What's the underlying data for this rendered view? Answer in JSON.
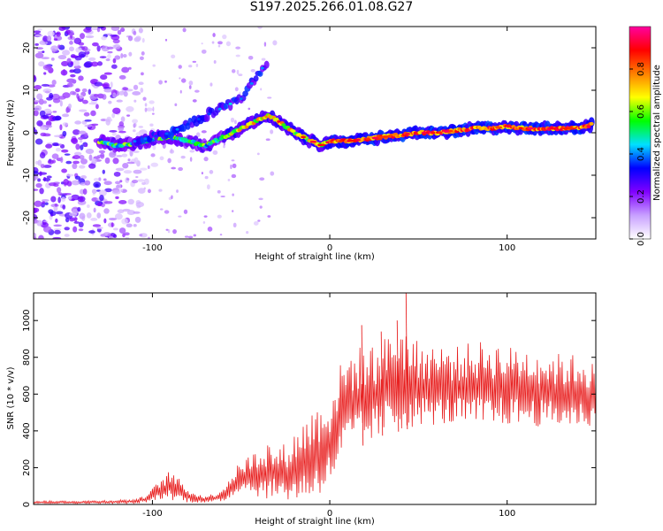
{
  "title": "S197.2025.266.01.08.G27",
  "chart_data": [
    {
      "type": "heatmap",
      "xlabel": "Height of straight line (km)",
      "ylabel": "Frequency (Hz)",
      "xlim": [
        -167,
        150
      ],
      "ylim": [
        -25,
        25
      ],
      "xticks": [
        -100,
        0,
        100
      ],
      "xtick_labels": [
        "-100",
        "0",
        "100"
      ],
      "yticks": [
        -20,
        -10,
        0,
        10,
        20
      ],
      "ytick_labels": [
        "-20",
        "-10",
        "0",
        "10",
        "20"
      ],
      "colorbar": {
        "label": "Normalized spectral amplitude",
        "range": [
          0.0,
          1.0
        ],
        "ticks": [
          0.0,
          0.2,
          0.4,
          0.6,
          0.8
        ],
        "tick_labels": [
          "0.0",
          "0.2",
          "0.4",
          "0.6",
          "0.8"
        ],
        "colors": [
          "#ffffff",
          "#c8a0ff",
          "#8000ff",
          "#0000ff",
          "#00e0ff",
          "#00ff00",
          "#ffff00",
          "#ff8000",
          "#ff0000",
          "#ff00a0"
        ]
      },
      "ridge": {
        "x": [
          -130,
          -120,
          -110,
          -100,
          -90,
          -80,
          -70,
          -60,
          -50,
          -40,
          -35,
          -30,
          -25,
          -20,
          -15,
          -10,
          -5,
          0,
          5,
          10,
          20,
          30,
          40,
          50,
          60,
          70,
          80,
          90,
          100,
          110,
          120,
          130,
          140,
          148
        ],
        "y": [
          -2,
          -3,
          -2.5,
          -1.5,
          -1,
          -2,
          -3,
          -1,
          1,
          3,
          4,
          3,
          1.5,
          0,
          -1,
          -2,
          -3,
          -2,
          -2,
          -2,
          -1.5,
          -1,
          -0.5,
          0,
          0,
          0.5,
          1,
          1,
          1.5,
          1,
          1,
          1,
          1,
          2
        ]
      },
      "branch": {
        "x": [
          -110,
          -100,
          -90,
          -80,
          -70,
          -60,
          -50,
          -40,
          -35
        ],
        "y": [
          -2,
          -1,
          0,
          2,
          4,
          6,
          8,
          14,
          17
        ]
      },
      "noise_region_x": [
        -167,
        -110
      ]
    },
    {
      "type": "line",
      "xlabel": "Height of straight line (km)",
      "ylabel": "SNR (10 * v/v)",
      "xlim": [
        -167,
        150
      ],
      "ylim": [
        0,
        1150
      ],
      "xticks": [
        -100,
        0,
        100
      ],
      "xtick_labels": [
        "-100",
        "0",
        "100"
      ],
      "yticks": [
        0,
        200,
        400,
        600,
        800,
        1000
      ],
      "ytick_labels": [
        "0",
        "200",
        "400",
        "600",
        "800",
        "1000"
      ],
      "color": "#e82020",
      "envelope": {
        "x": [
          -167,
          -140,
          -120,
          -110,
          -105,
          -100,
          -95,
          -90,
          -85,
          -80,
          -75,
          -70,
          -65,
          -60,
          -55,
          -50,
          -45,
          -40,
          -35,
          -30,
          -25,
          -20,
          -15,
          -10,
          -5,
          0,
          5,
          10,
          15,
          20,
          30,
          40,
          50,
          60,
          70,
          80,
          90,
          100,
          110,
          120,
          130,
          140,
          148
        ],
        "low": [
          5,
          5,
          5,
          5,
          8,
          15,
          30,
          25,
          20,
          10,
          10,
          8,
          10,
          15,
          40,
          80,
          60,
          40,
          30,
          50,
          20,
          20,
          20,
          30,
          60,
          100,
          200,
          300,
          320,
          320,
          380,
          400,
          430,
          430,
          430,
          420,
          420,
          430,
          430,
          420,
          420,
          420,
          420
        ],
        "high": [
          20,
          20,
          25,
          30,
          45,
          90,
          140,
          190,
          140,
          90,
          60,
          50,
          60,
          100,
          170,
          240,
          270,
          320,
          350,
          300,
          340,
          390,
          470,
          520,
          570,
          600,
          750,
          830,
          860,
          860,
          900,
          1000,
          880,
          880,
          860,
          880,
          900,
          860,
          860,
          840,
          820,
          820,
          780
        ]
      },
      "peaks": [
        {
          "x": 43,
          "y": 1150
        },
        {
          "x": 38,
          "y": 1000
        },
        {
          "x": 18,
          "y": 975
        },
        {
          "x": 29,
          "y": 940
        }
      ]
    }
  ]
}
